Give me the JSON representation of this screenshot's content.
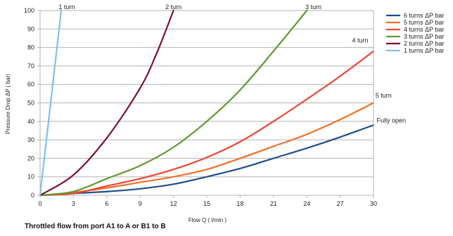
{
  "chart_data": {
    "type": "line",
    "caption": "Throttled flow from port A1 to A or B1 to B",
    "xlabel": "Flow Q ( l/min )",
    "ylabel": "Pressure Drop ΔP ( bar)",
    "xlim": [
      0,
      30
    ],
    "ylim": [
      0,
      100
    ],
    "x_ticks": [
      "0",
      "3",
      "6",
      "9",
      "12",
      "15",
      "18",
      "21",
      "24",
      "27",
      "30"
    ],
    "y_ticks": [
      "0",
      "10",
      "20",
      "30",
      "40",
      "50",
      "60",
      "70",
      "80",
      "90",
      "100"
    ],
    "grid": "horizontal",
    "legend_position": "right",
    "series": [
      {
        "name": "6 turns ΔP bar",
        "color": "#1f4e8c",
        "points": [
          [
            0,
            0
          ],
          [
            3,
            1
          ],
          [
            6,
            2
          ],
          [
            9,
            3.5
          ],
          [
            12,
            6
          ],
          [
            15,
            10
          ],
          [
            18,
            14.5
          ],
          [
            21,
            20
          ],
          [
            24,
            25.5
          ],
          [
            27,
            31.5
          ],
          [
            30,
            38
          ]
        ]
      },
      {
        "name": "5 turns ΔP bar",
        "color": "#f07028",
        "points": [
          [
            0,
            0
          ],
          [
            3,
            1.5
          ],
          [
            6,
            4
          ],
          [
            9,
            7
          ],
          [
            12,
            10
          ],
          [
            15,
            14
          ],
          [
            18,
            20
          ],
          [
            21,
            26.5
          ],
          [
            24,
            33
          ],
          [
            27,
            41
          ],
          [
            30,
            50
          ]
        ]
      },
      {
        "name": "4 turns ΔP bar",
        "color": "#ee4433",
        "points": [
          [
            0,
            0
          ],
          [
            3,
            1
          ],
          [
            6,
            5
          ],
          [
            9,
            9
          ],
          [
            12,
            14
          ],
          [
            15,
            20.5
          ],
          [
            18,
            29
          ],
          [
            21,
            40
          ],
          [
            24,
            52
          ],
          [
            27,
            64.5
          ],
          [
            30,
            78
          ]
        ]
      },
      {
        "name": "3 turns ΔP bar",
        "color": "#5e9a2e",
        "points": [
          [
            0,
            0
          ],
          [
            3,
            2
          ],
          [
            6,
            9
          ],
          [
            9,
            16
          ],
          [
            12,
            26
          ],
          [
            15,
            40
          ],
          [
            18,
            57
          ],
          [
            21,
            78
          ],
          [
            24,
            100
          ]
        ]
      },
      {
        "name": "2 turns ΔP bar",
        "color": "#7a1030",
        "points": [
          [
            0,
            0
          ],
          [
            3,
            11
          ],
          [
            6,
            31
          ],
          [
            9,
            58
          ],
          [
            10.5,
            77
          ],
          [
            12,
            100
          ]
        ]
      },
      {
        "name": "1 turns ΔP bar",
        "color": "#7fc0ec",
        "points": [
          [
            0,
            0
          ],
          [
            1.9,
            100
          ]
        ]
      }
    ],
    "annotations": [
      {
        "text": "1 turn",
        "x": 2.4,
        "y": 100
      },
      {
        "text": "2 turn",
        "x": 12,
        "y": 100
      },
      {
        "text": "3 turn",
        "x": 24.6,
        "y": 100
      },
      {
        "text": "4 turn",
        "x": 28.8,
        "y": 82
      },
      {
        "text": "5 turn",
        "x": 30.9,
        "y": 52
      },
      {
        "text": "Fully open",
        "x": 31.6,
        "y": 38.5
      }
    ]
  }
}
